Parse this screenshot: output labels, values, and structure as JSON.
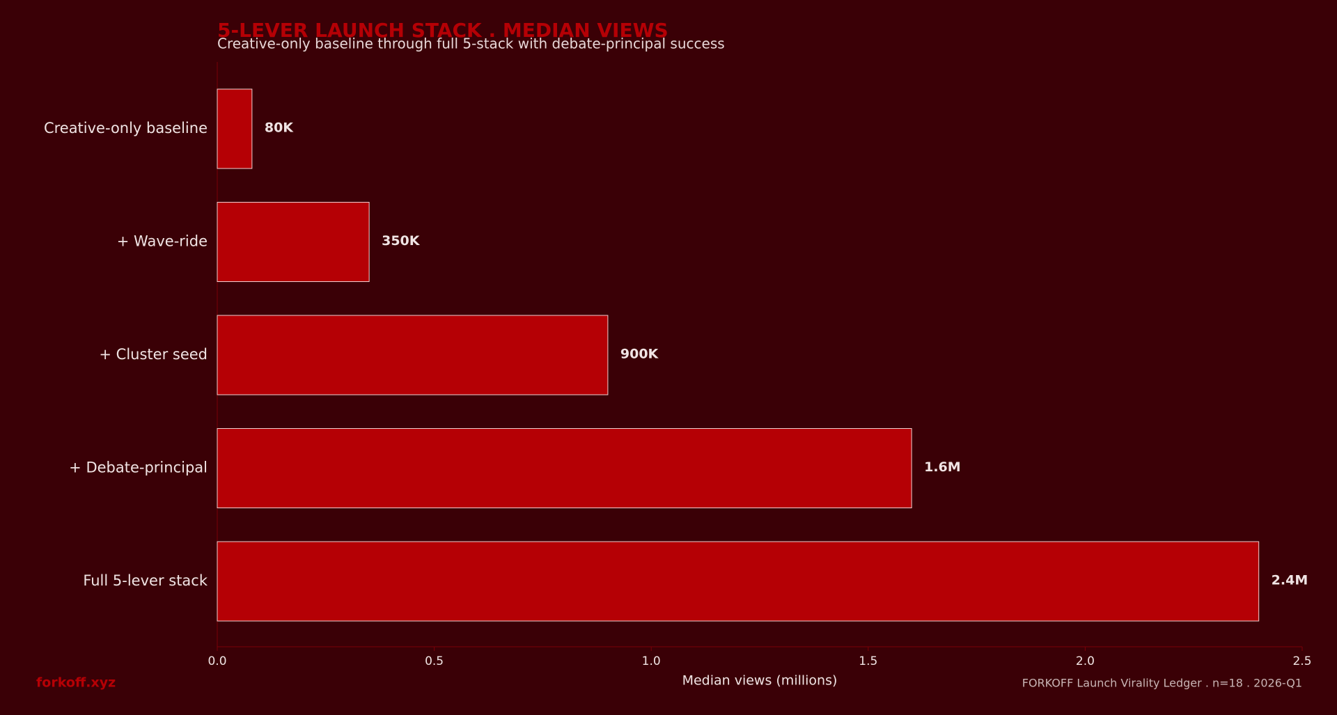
{
  "chart_data": {
    "type": "barh",
    "title": "5-LEVER LAUNCH STACK . MEDIAN VIEWS",
    "subtitle": "Creative-only baseline through full 5-stack with debate-principal success",
    "x_label": "Median views (millions)",
    "brand": "forkoff.xyz",
    "source": "FORKOFF Launch Virality Ledger . n=18 . 2026-Q1",
    "categories": [
      "Creative-only baseline",
      "+ Wave-ride",
      "+ Cluster seed",
      "+ Debate-principal",
      "Full 5-lever stack"
    ],
    "values": [
      0.08,
      0.35,
      0.9,
      1.6,
      2.4
    ],
    "value_labels": [
      "80K",
      "350K",
      "900K",
      "1.6M",
      "2.4M"
    ],
    "color": "#b50005",
    "xlim": [
      0,
      2.5
    ],
    "xticks": [
      {
        "value": 0,
        "label": "0.0"
      },
      0.5,
      {
        "value": 1,
        "label": "1.0"
      },
      1.5,
      {
        "value": 2,
        "label": "2.0"
      },
      2.5
    ],
    "grid": false
  }
}
